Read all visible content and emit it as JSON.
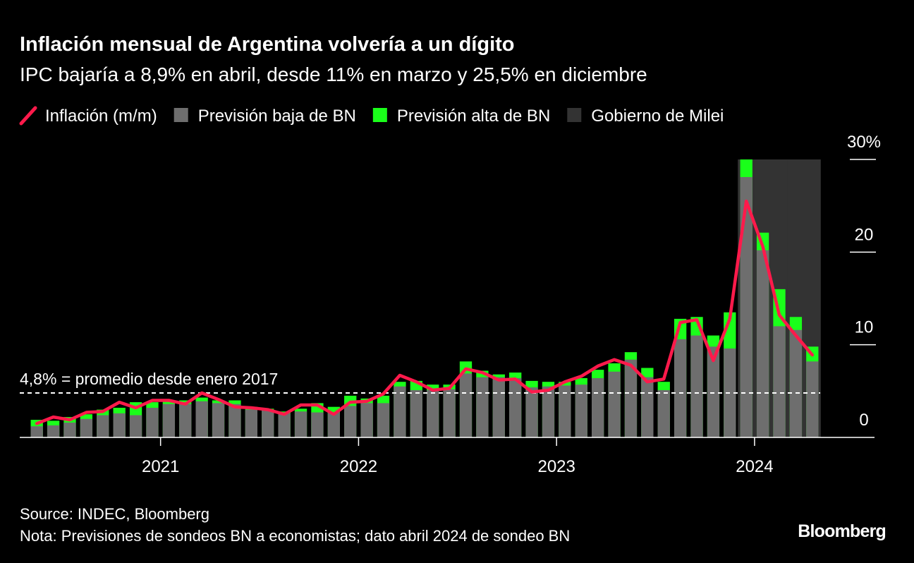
{
  "chart_data": {
    "type": "bar",
    "title": "Inflación mensual de Argentina volvería a un dígito",
    "subtitle": "IPC bajaría a 8,9% en abril, desde 11% en marzo y 25,5% en diciembre",
    "categories": [
      null,
      null,
      null,
      null,
      null,
      null,
      null,
      null,
      "2021",
      null,
      null,
      null,
      null,
      null,
      null,
      null,
      null,
      null,
      null,
      null,
      "2022",
      null,
      null,
      null,
      null,
      null,
      null,
      null,
      null,
      null,
      null,
      null,
      "2023",
      null,
      null,
      null,
      null,
      null,
      null,
      null,
      null,
      null,
      null,
      null,
      "2024",
      null,
      null,
      null
    ],
    "series": [
      {
        "name": "Inflación (m/m)",
        "type": "line",
        "color": "#ff1a4b",
        "values": [
          1.5,
          2.2,
          1.9,
          2.7,
          2.8,
          3.8,
          3.2,
          4.0,
          4.0,
          3.6,
          4.8,
          4.1,
          3.3,
          3.2,
          3.0,
          2.5,
          3.5,
          3.5,
          2.5,
          3.8,
          3.9,
          4.7,
          6.7,
          6.0,
          5.1,
          5.3,
          7.4,
          7.0,
          6.2,
          6.3,
          4.9,
          5.1,
          6.0,
          6.6,
          7.7,
          8.4,
          7.8,
          6.0,
          6.3,
          12.4,
          12.7,
          8.3,
          12.8,
          25.5,
          20.6,
          13.2,
          11.0,
          8.9
        ]
      },
      {
        "name": "Previsión baja de BN",
        "type": "bar",
        "color": "#6e6e6e",
        "values": [
          1.2,
          1.3,
          1.6,
          2.0,
          2.4,
          2.6,
          2.4,
          3.2,
          3.6,
          3.6,
          3.9,
          3.7,
          3.6,
          3.0,
          3.0,
          2.6,
          2.8,
          2.7,
          2.7,
          3.4,
          3.7,
          3.7,
          5.5,
          5.1,
          5.1,
          5.2,
          6.9,
          6.5,
          6.5,
          6.4,
          5.4,
          5.5,
          5.6,
          5.7,
          6.4,
          7.1,
          8.4,
          6.5,
          5.1,
          10.6,
          11.0,
          9.8,
          9.6,
          28.1,
          20.2,
          12.0,
          11.6,
          8.2
        ]
      },
      {
        "name": "Previsión alta de BN",
        "type": "bar",
        "color": "#1aff1a",
        "values": [
          1.9,
          1.8,
          2.2,
          2.5,
          3.0,
          3.2,
          3.8,
          3.8,
          4.0,
          4.0,
          4.3,
          4.0,
          4.0,
          3.3,
          3.1,
          2.8,
          3.1,
          3.7,
          3.3,
          4.5,
          4.2,
          4.5,
          6.0,
          6.1,
          5.7,
          5.7,
          8.2,
          7.2,
          6.8,
          7.0,
          6.1,
          6.0,
          6.0,
          6.4,
          7.3,
          8.0,
          9.2,
          7.5,
          6.0,
          12.8,
          13.0,
          11.0,
          13.5,
          30.0,
          22.1,
          16.0,
          13.0,
          9.8
        ]
      },
      {
        "name": "Gobierno de Milei",
        "type": "shade",
        "color": "#333333",
        "values": [
          null,
          null,
          null,
          null,
          null,
          null,
          null,
          null,
          null,
          null,
          null,
          null,
          null,
          null,
          null,
          null,
          null,
          null,
          null,
          null,
          null,
          null,
          null,
          null,
          null,
          null,
          null,
          null,
          null,
          null,
          null,
          null,
          null,
          null,
          null,
          null,
          null,
          null,
          null,
          null,
          null,
          null,
          null,
          30,
          30,
          30,
          30,
          30
        ]
      }
    ],
    "ylim": [
      0,
      30
    ],
    "yticks": [
      {
        "value": 30,
        "label": "30%"
      },
      20,
      10,
      0
    ],
    "annotation": {
      "text": "4,8% = promedio desde enero 2017",
      "value": 4.8
    },
    "source": "Source: INDEC, Bloomberg",
    "note": "Nota: Previsiones de sondeos BN a economistas; dato abril 2024 de sondeo BN",
    "logo": "Bloomberg"
  }
}
